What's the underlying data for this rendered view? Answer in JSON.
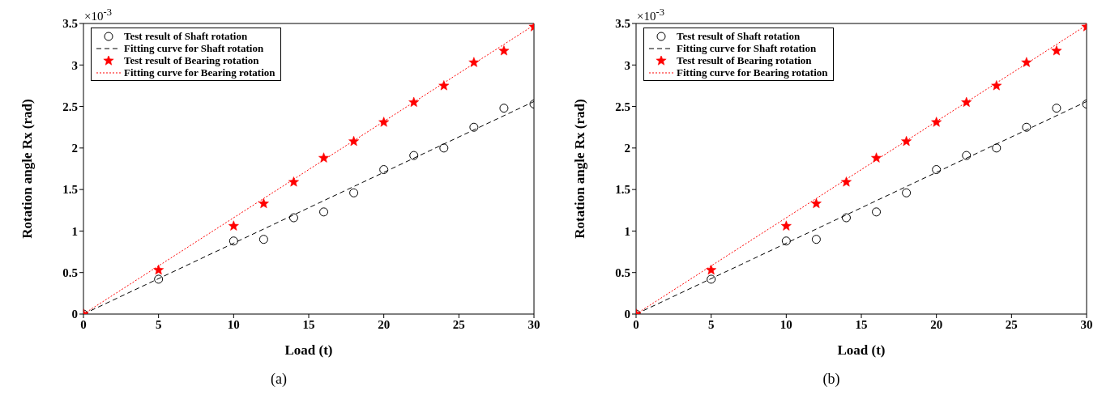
{
  "chart_data": [
    {
      "type": "scatter",
      "title": "(a)",
      "xlabel": "Load  (t)",
      "ylabel": "Rotation angle Rx (rad)",
      "annotations": [
        "×10$^{-3}$"
      ],
      "xlim": [
        0,
        30
      ],
      "xticks": [
        0,
        5,
        10,
        15,
        20,
        25,
        30
      ],
      "ylim": [
        0,
        3.5
      ],
      "yticks": [
        0,
        0.5,
        1,
        1.5,
        2,
        2.5,
        3,
        3.5
      ],
      "grid": false,
      "legend": "top left",
      "series": [
        {
          "name": "Test result of Shaft rotation",
          "marker": "circle",
          "color": "#000000",
          "x": [
            0,
            5,
            10,
            12,
            14,
            16,
            18,
            20,
            22,
            24,
            26,
            28,
            30
          ],
          "values": [
            0,
            0.42,
            0.88,
            0.9,
            1.16,
            1.23,
            1.46,
            1.74,
            1.91,
            2.0,
            2.25,
            2.48,
            2.53
          ]
        },
        {
          "name": "Fitting curve for Shaft rotation",
          "type": "line",
          "marker": "none",
          "line_style": "dashed",
          "color": "#000000",
          "x": [
            0,
            30
          ],
          "values": [
            0,
            2.56
          ]
        },
        {
          "name": "Test result of Bearing rotation",
          "marker": "star",
          "color": "#ff0000",
          "x": [
            0,
            5,
            10,
            12,
            14,
            16,
            18,
            20,
            22,
            24,
            26,
            28,
            30
          ],
          "values": [
            0,
            0.53,
            1.06,
            1.33,
            1.59,
            1.88,
            2.08,
            2.31,
            2.55,
            2.75,
            3.03,
            3.17,
            3.46
          ]
        },
        {
          "name": "Fitting curve for Bearing rotation",
          "type": "line",
          "marker": "none",
          "line_style": "dotted",
          "color": "#ff0000",
          "x": [
            0,
            30
          ],
          "values": [
            0,
            3.48
          ]
        }
      ]
    },
    {
      "type": "scatter",
      "title": "(b)",
      "xlabel": "Load  (t)",
      "ylabel": "Rotation angle Rx (rad)",
      "annotations": [
        "×10$^{-3}$"
      ],
      "xlim": [
        0,
        30
      ],
      "xticks": [
        0,
        5,
        10,
        15,
        20,
        25,
        30
      ],
      "ylim": [
        0,
        3.5
      ],
      "yticks": [
        0,
        0.5,
        1,
        1.5,
        2,
        2.5,
        3,
        3.5
      ],
      "grid": false,
      "legend": "top left",
      "series": [
        {
          "name": "Test result of Shaft rotation",
          "marker": "circle",
          "color": "#000000",
          "x": [
            0,
            5,
            10,
            12,
            14,
            16,
            18,
            20,
            22,
            24,
            26,
            28,
            30
          ],
          "values": [
            0,
            0.42,
            0.88,
            0.9,
            1.16,
            1.23,
            1.46,
            1.74,
            1.91,
            2.0,
            2.25,
            2.48,
            2.53
          ]
        },
        {
          "name": "Fitting curve for Shaft rotation",
          "type": "line",
          "marker": "none",
          "line_style": "dashed",
          "color": "#000000",
          "x": [
            0,
            30
          ],
          "values": [
            0,
            2.56
          ]
        },
        {
          "name": "Test result of Bearing rotation",
          "marker": "star",
          "color": "#ff0000",
          "x": [
            0,
            5,
            10,
            12,
            14,
            16,
            18,
            20,
            22,
            24,
            26,
            28,
            30
          ],
          "values": [
            0,
            0.53,
            1.06,
            1.33,
            1.59,
            1.88,
            2.08,
            2.31,
            2.55,
            2.75,
            3.03,
            3.17,
            3.46
          ]
        },
        {
          "name": "Fitting curve for Bearing rotation",
          "type": "line",
          "marker": "none",
          "line_style": "dotted",
          "color": "#ff0000",
          "x": [
            0,
            30
          ],
          "values": [
            0,
            3.48
          ]
        }
      ]
    }
  ]
}
